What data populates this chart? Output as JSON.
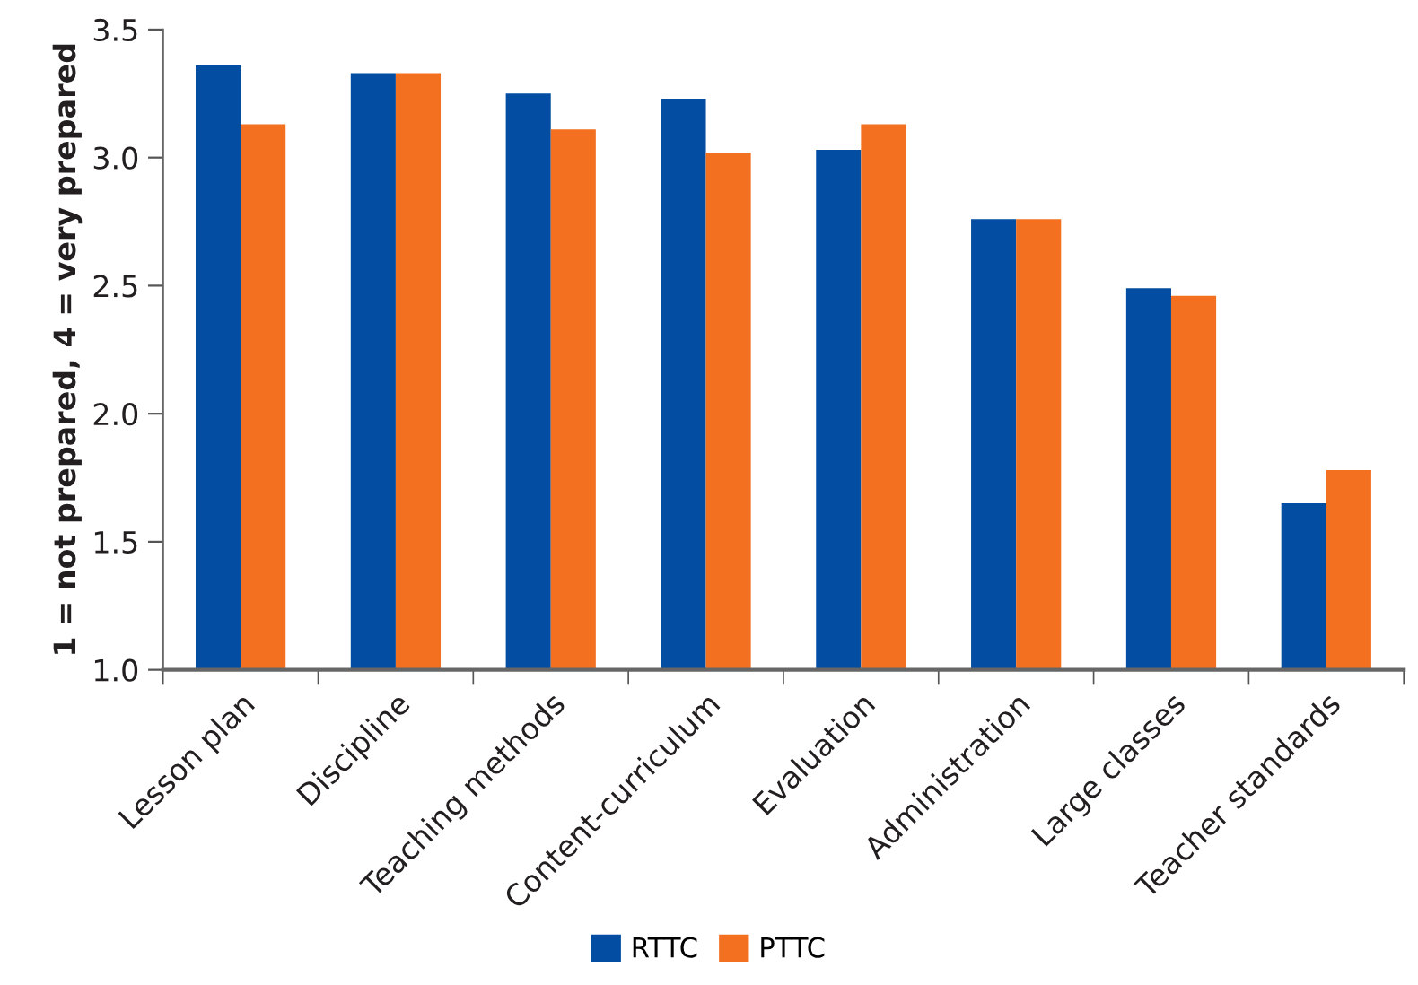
{
  "chart_data": {
    "type": "bar",
    "ylabel": "1 = not prepared, 4 = very prepared",
    "categories": [
      "Lesson plan",
      "Discipline",
      "Teaching methods",
      "Content-curriculum",
      "Evaluation",
      "Administration",
      "Large classes",
      "Teacher standards"
    ],
    "series": [
      {
        "name": "RTTC",
        "color": "#034ea2",
        "values": [
          3.36,
          3.33,
          3.25,
          3.23,
          3.03,
          2.76,
          2.49,
          1.65
        ]
      },
      {
        "name": "PTTC",
        "color": "#f37021",
        "values": [
          3.13,
          3.33,
          3.11,
          3.02,
          3.13,
          2.76,
          2.46,
          1.78
        ]
      }
    ],
    "ylim": [
      1.0,
      3.5
    ],
    "yticks": [
      {
        "value": 1.0,
        "label": "1.0"
      },
      {
        "value": 1.5,
        "label": "1.5"
      },
      {
        "value": 2.0,
        "label": "2.0"
      },
      {
        "value": 2.5,
        "label": "2.5"
      },
      {
        "value": 3.0,
        "label": "3.0"
      },
      {
        "value": 3.5,
        "label": "3.5"
      }
    ],
    "grid": false,
    "legend": "bottom"
  }
}
